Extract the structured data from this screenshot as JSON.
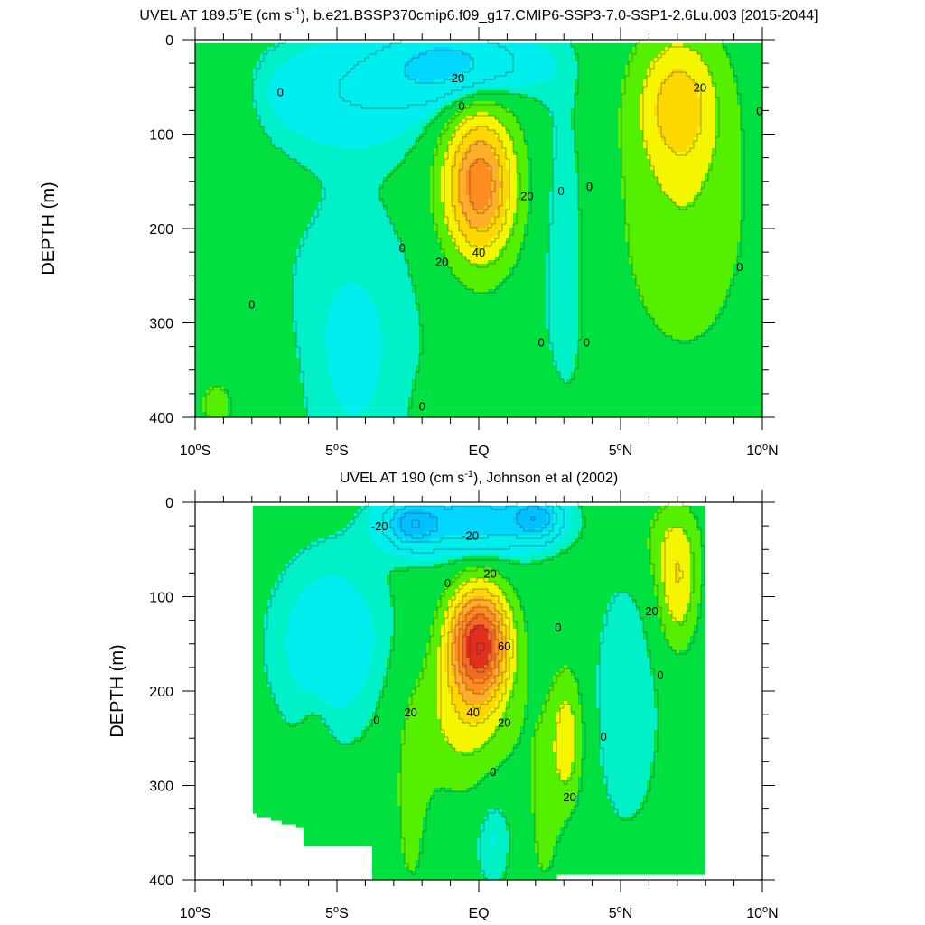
{
  "colors": {
    "lt_m30": "#00c0ff",
    "m30_m20": "#00d6ff",
    "m20_0": "#00eeee",
    "m0_0": "#00f0c8",
    "p0_10": "#00e040",
    "p10_20": "#55f000",
    "p20_30": "#f5f500",
    "p30_40": "#ffd700",
    "p40_50": "#ffae2a",
    "p50_60": "#ff8c20",
    "p60_70": "#f26b22",
    "gt70": "#e23020"
  },
  "chart_data": [
    {
      "type": "heatmap",
      "title_main": "UVEL AT 189.5",
      "title_sup_o": "o",
      "title_unit": "E (cm s",
      "title_sup_exp": "-1",
      "title_rest": "), b.e21.BSSP370cmip6.f09_g17.CMIP6-SSP3-7.0-SSP1-2.6Lu.003 [2015-2044]",
      "ylabel": "DEPTH (m)",
      "xlabel": "",
      "xlim": [
        -10,
        10
      ],
      "ylim": [
        400,
        0
      ],
      "x_ticks": [
        {
          "value": -10,
          "label": "10",
          "sup": "o",
          "suffix": "S"
        },
        {
          "value": -5,
          "label": "5",
          "sup": "o",
          "suffix": "S"
        },
        {
          "value": 0,
          "label": "EQ",
          "sup": "",
          "suffix": ""
        },
        {
          "value": 5,
          "label": "5",
          "sup": "o",
          "suffix": "N"
        },
        {
          "value": 10,
          "label": "10",
          "sup": "o",
          "suffix": "N"
        }
      ],
      "y_ticks": [
        0,
        100,
        200,
        300,
        400
      ],
      "data_xlim": [
        -10,
        10
      ],
      "core": {
        "lat": 0.0,
        "depth": 150,
        "max": 55
      },
      "contour_labels": [
        {
          "text": "0",
          "lat": -7.0,
          "depth": 55
        },
        {
          "text": "-20",
          "lat": -0.8,
          "depth": 40
        },
        {
          "text": "20",
          "lat": 7.8,
          "depth": 50
        },
        {
          "text": "0",
          "lat": 9.9,
          "depth": 75
        },
        {
          "text": "0",
          "lat": -0.6,
          "depth": 70
        },
        {
          "text": "20",
          "lat": 1.7,
          "depth": 165
        },
        {
          "text": "0",
          "lat": 2.9,
          "depth": 160
        },
        {
          "text": "0",
          "lat": 3.9,
          "depth": 155
        },
        {
          "text": "0",
          "lat": -2.7,
          "depth": 220
        },
        {
          "text": "40",
          "lat": 0.0,
          "depth": 225
        },
        {
          "text": "20",
          "lat": -1.3,
          "depth": 235
        },
        {
          "text": "0",
          "lat": 9.2,
          "depth": 240
        },
        {
          "text": "0",
          "lat": -8.0,
          "depth": 280
        },
        {
          "text": "0",
          "lat": 2.2,
          "depth": 320
        },
        {
          "text": "0",
          "lat": 3.8,
          "depth": 320
        },
        {
          "text": "0",
          "lat": -2.0,
          "depth": 388
        }
      ]
    },
    {
      "type": "heatmap",
      "title_main": "UVEL AT 190 (cm s",
      "title_sup_o": "",
      "title_unit": "",
      "title_sup_exp": "-1",
      "title_rest": "), Johnson et al (2002)",
      "ylabel": "DEPTH (m)",
      "xlabel": "",
      "xlim": [
        -10,
        10
      ],
      "ylim": [
        400,
        0
      ],
      "x_ticks": [
        {
          "value": -10,
          "label": "10",
          "sup": "o",
          "suffix": "S"
        },
        {
          "value": -5,
          "label": "5",
          "sup": "o",
          "suffix": "S"
        },
        {
          "value": 0,
          "label": "EQ",
          "sup": "",
          "suffix": ""
        },
        {
          "value": 5,
          "label": "5",
          "sup": "o",
          "suffix": "N"
        },
        {
          "value": 10,
          "label": "10",
          "sup": "o",
          "suffix": "N"
        }
      ],
      "y_ticks": [
        0,
        100,
        200,
        300,
        400
      ],
      "data_xlim": [
        -8,
        8
      ],
      "core": {
        "lat": 0.0,
        "depth": 150,
        "max": 75
      },
      "contour_labels": [
        {
          "text": "-20",
          "lat": -3.5,
          "depth": 25
        },
        {
          "text": "-20",
          "lat": -0.3,
          "depth": 35
        },
        {
          "text": "20",
          "lat": 0.4,
          "depth": 75
        },
        {
          "text": "0",
          "lat": -1.1,
          "depth": 85
        },
        {
          "text": "20",
          "lat": 6.1,
          "depth": 115
        },
        {
          "text": "0",
          "lat": 2.8,
          "depth": 132
        },
        {
          "text": "60",
          "lat": 0.9,
          "depth": 152
        },
        {
          "text": "0",
          "lat": 6.4,
          "depth": 183
        },
        {
          "text": "0",
          "lat": -3.6,
          "depth": 230
        },
        {
          "text": "20",
          "lat": -2.4,
          "depth": 222
        },
        {
          "text": "40",
          "lat": -0.2,
          "depth": 222
        },
        {
          "text": "20",
          "lat": 0.9,
          "depth": 233
        },
        {
          "text": "0",
          "lat": 4.4,
          "depth": 248
        },
        {
          "text": "0",
          "lat": 0.5,
          "depth": 285
        },
        {
          "text": "20",
          "lat": 3.2,
          "depth": 312
        }
      ]
    }
  ]
}
